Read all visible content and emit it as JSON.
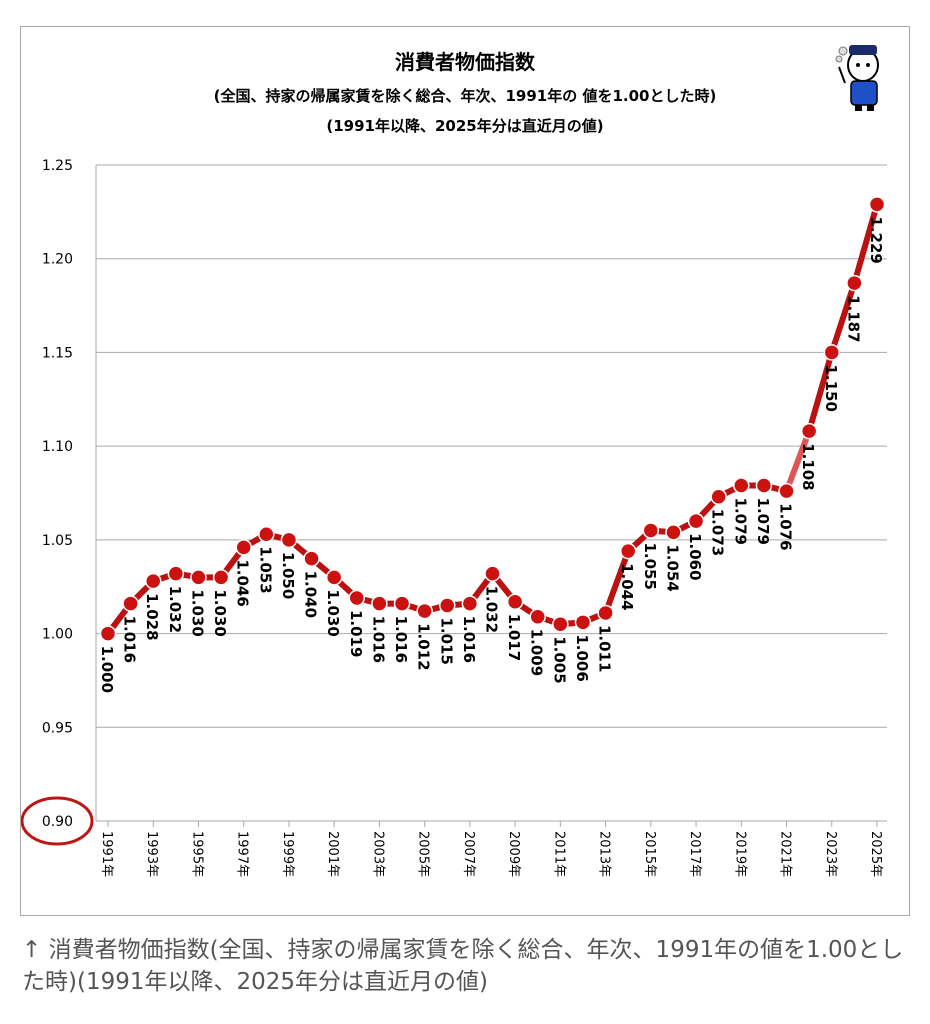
{
  "chart_data": {
    "type": "line",
    "title": "消費者物価指数",
    "subtitle_1": "(全国、持家の帰属家賃を除く総合、年次、1991年の 値を1.00とした時)",
    "subtitle_2": "(1991年以降、2025年分は直近月の値)",
    "ylim": [
      0.9,
      1.25
    ],
    "yticks": [
      "1.25",
      "1.20",
      "1.15",
      "1.10",
      "1.05",
      "1.00",
      "0.95",
      "0.90"
    ],
    "ytick_values": [
      1.25,
      1.2,
      1.15,
      1.1,
      1.05,
      1.0,
      0.95,
      0.9
    ],
    "grid": true,
    "x": [
      1991,
      1992,
      1993,
      1994,
      1995,
      1996,
      1997,
      1998,
      1999,
      2000,
      2001,
      2002,
      2003,
      2004,
      2005,
      2006,
      2007,
      2008,
      2009,
      2010,
      2011,
      2012,
      2013,
      2014,
      2015,
      2016,
      2017,
      2018,
      2019,
      2020,
      2021,
      2022,
      2023,
      2024,
      2025
    ],
    "xtick_labels": [
      "1991年",
      "1993年",
      "1995年",
      "1997年",
      "1999年",
      "2001年",
      "2003年",
      "2005年",
      "2007年",
      "2009年",
      "2011年",
      "2013年",
      "2015年",
      "2017年",
      "2019年",
      "2021年",
      "2023年",
      "2025年"
    ],
    "values": [
      1.0,
      1.016,
      1.028,
      1.032,
      1.03,
      1.03,
      1.046,
      1.053,
      1.05,
      1.04,
      1.03,
      1.019,
      1.016,
      1.016,
      1.012,
      1.015,
      1.016,
      1.032,
      1.017,
      1.009,
      1.005,
      1.006,
      1.011,
      1.044,
      1.055,
      1.054,
      1.06,
      1.073,
      1.079,
      1.079,
      1.076,
      1.108,
      1.15,
      1.187,
      1.229
    ],
    "value_labels": [
      "1.000",
      "1.016",
      "1.028",
      "1.032",
      "1.030",
      "1.030",
      "1.046",
      "1.053",
      "1.050",
      "1.040",
      "1.030",
      "1.019",
      "1.016",
      "1.016",
      "1.012",
      "1.015",
      "1.016",
      "1.032",
      "1.017",
      "1.009",
      "1.005",
      "1.006",
      "1.011",
      "1.044",
      "1.055",
      "1.054",
      "1.060",
      "1.073",
      "1.079",
      "1.079",
      "1.076",
      "1.108",
      "1.150",
      "1.187",
      "1.229"
    ],
    "colors": {
      "line": "#bb1111",
      "marker": "#cc1111",
      "segment_2021_2022": "#dd5555",
      "grid": "#a9a9a9",
      "highlight_circle": "#c01515"
    },
    "annotations": [
      {
        "type": "circle",
        "target_ytick": "0.90"
      }
    ]
  },
  "mascot": {
    "icon": "mascot-character-icon"
  },
  "caption": "↑ 消費者物価指数(全国、持家の帰属家賃を除く総合、年次、1991年の値を1.00とした時)(1991年以降、2025年分は直近月の値)"
}
